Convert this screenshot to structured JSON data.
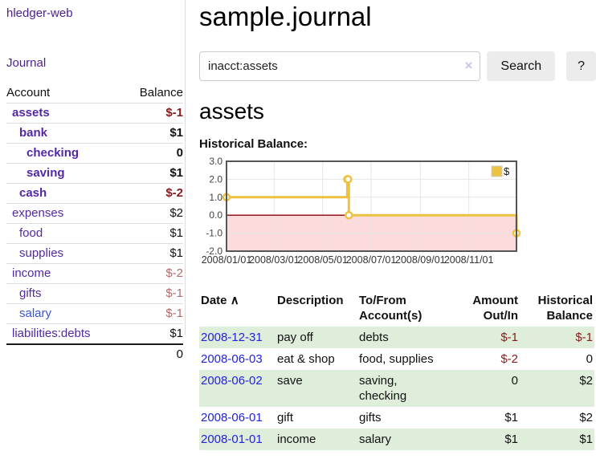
{
  "colors": {
    "link_purple": "#5229a3",
    "link_blue": "#2222dd",
    "negative_strong": "#871c1c",
    "negative_soft": "#b36b6b",
    "row_green": "#dfeeda",
    "series_yellow": "#edc240",
    "below_zero_pink": "#fbdbdb",
    "zero_line_red": "#8b0000",
    "grid_line": "#e6e6e6",
    "chart_border": "#555555"
  },
  "sidebar": {
    "app_title": "hledger-web",
    "journal_label": "Journal",
    "accounts_table": {
      "headers": {
        "account": "Account",
        "balance": "Balance"
      },
      "rows": [
        {
          "name": "assets",
          "depth": 1,
          "bold": true,
          "balance": "$-1",
          "balance_style": "neg-strong"
        },
        {
          "name": "bank",
          "depth": 2,
          "bold": true,
          "balance": "$1",
          "balance_style": "pos-strong"
        },
        {
          "name": "checking",
          "depth": 3,
          "bold": true,
          "balance": "0",
          "balance_style": "pos-strong"
        },
        {
          "name": "saving",
          "depth": 3,
          "bold": true,
          "balance": "$1",
          "balance_style": "pos-strong"
        },
        {
          "name": "cash",
          "depth": 2,
          "bold": true,
          "balance": "$-2",
          "balance_style": "neg-strong"
        },
        {
          "name": "expenses",
          "depth": 1,
          "bold": false,
          "balance": "$2",
          "balance_style": "pos"
        },
        {
          "name": "food",
          "depth": 2,
          "bold": false,
          "balance": "$1",
          "balance_style": "pos"
        },
        {
          "name": "supplies",
          "depth": 2,
          "bold": false,
          "balance": "$1",
          "balance_style": "pos"
        },
        {
          "name": "income",
          "depth": 1,
          "bold": false,
          "balance": "$-2",
          "balance_style": "neg"
        },
        {
          "name": "gifts",
          "depth": 2,
          "bold": false,
          "balance": "$-1",
          "balance_style": "neg"
        },
        {
          "name": "salary",
          "depth": 2,
          "bold": false,
          "link_color": "blue",
          "balance": "$-1",
          "balance_style": "neg"
        },
        {
          "name": "liabilities:debts",
          "depth": 1,
          "bold": false,
          "balance": "$1",
          "balance_style": "pos"
        }
      ],
      "total": "0"
    }
  },
  "main": {
    "title": "sample.journal",
    "search": {
      "value": "inacct:assets",
      "clear_icon": "×",
      "search_button": "Search",
      "help_button": "?"
    },
    "account_heading": "assets",
    "chart_label": "Historical Balance:"
  },
  "chart_data": {
    "type": "line",
    "step": true,
    "title": "Historical Balance",
    "xlabel": "",
    "ylabel": "",
    "legend": [
      "$"
    ],
    "legend_position": "top-right",
    "grid": true,
    "ylim": [
      -2,
      3
    ],
    "x_range": [
      "2008-01-01",
      "2008-12-31"
    ],
    "series": [
      {
        "name": "$",
        "color": "#edc240",
        "x": [
          "2008-01-01",
          "2008-06-01",
          "2008-06-02",
          "2008-06-03",
          "2008-12-31"
        ],
        "values": [
          1,
          2,
          2,
          0,
          -1
        ]
      }
    ],
    "yticks": [
      {
        "v": 3,
        "label": "3.0"
      },
      {
        "v": 2,
        "label": "2.0"
      },
      {
        "v": 1,
        "label": "1.0"
      },
      {
        "v": 0,
        "label": "0.0"
      },
      {
        "v": -1,
        "label": "-1.0"
      },
      {
        "v": -2,
        "label": "-2.0"
      }
    ],
    "xticks": [
      {
        "d": "2008-01-01",
        "label": "2008/01/01"
      },
      {
        "d": "2008-03-01",
        "label": "2008/03/01"
      },
      {
        "d": "2008-05-01",
        "label": "2008/05/01"
      },
      {
        "d": "2008-07-01",
        "label": "2008/07/01"
      },
      {
        "d": "2008-09-01",
        "label": "2008/09/01"
      },
      {
        "d": "2008-11-01",
        "label": "2008/11/01"
      }
    ]
  },
  "register_table": {
    "headers": {
      "date": "Date",
      "sort_indicator": "∧",
      "description": "Description",
      "tofrom": "To/From Account(s)",
      "amount": "Amount Out/In",
      "balance": "Historical Balance"
    },
    "rows": [
      {
        "date": "2008-12-31",
        "description": "pay off",
        "accounts": "debts",
        "amount": "$-1",
        "amount_neg": true,
        "balance": "$-1",
        "balance_neg": true
      },
      {
        "date": "2008-06-03",
        "description": "eat & shop",
        "accounts": "food, supplies",
        "amount": "$-2",
        "amount_neg": true,
        "balance": "0",
        "balance_neg": false
      },
      {
        "date": "2008-06-02",
        "description": "save",
        "accounts": "saving, checking",
        "amount": "0",
        "amount_neg": false,
        "balance": "$2",
        "balance_neg": false
      },
      {
        "date": "2008-06-01",
        "description": "gift",
        "accounts": "gifts",
        "amount": "$1",
        "amount_neg": false,
        "balance": "$2",
        "balance_neg": false
      },
      {
        "date": "2008-01-01",
        "description": "income",
        "accounts": "salary",
        "amount": "$1",
        "amount_neg": false,
        "balance": "$1",
        "balance_neg": false
      }
    ]
  }
}
